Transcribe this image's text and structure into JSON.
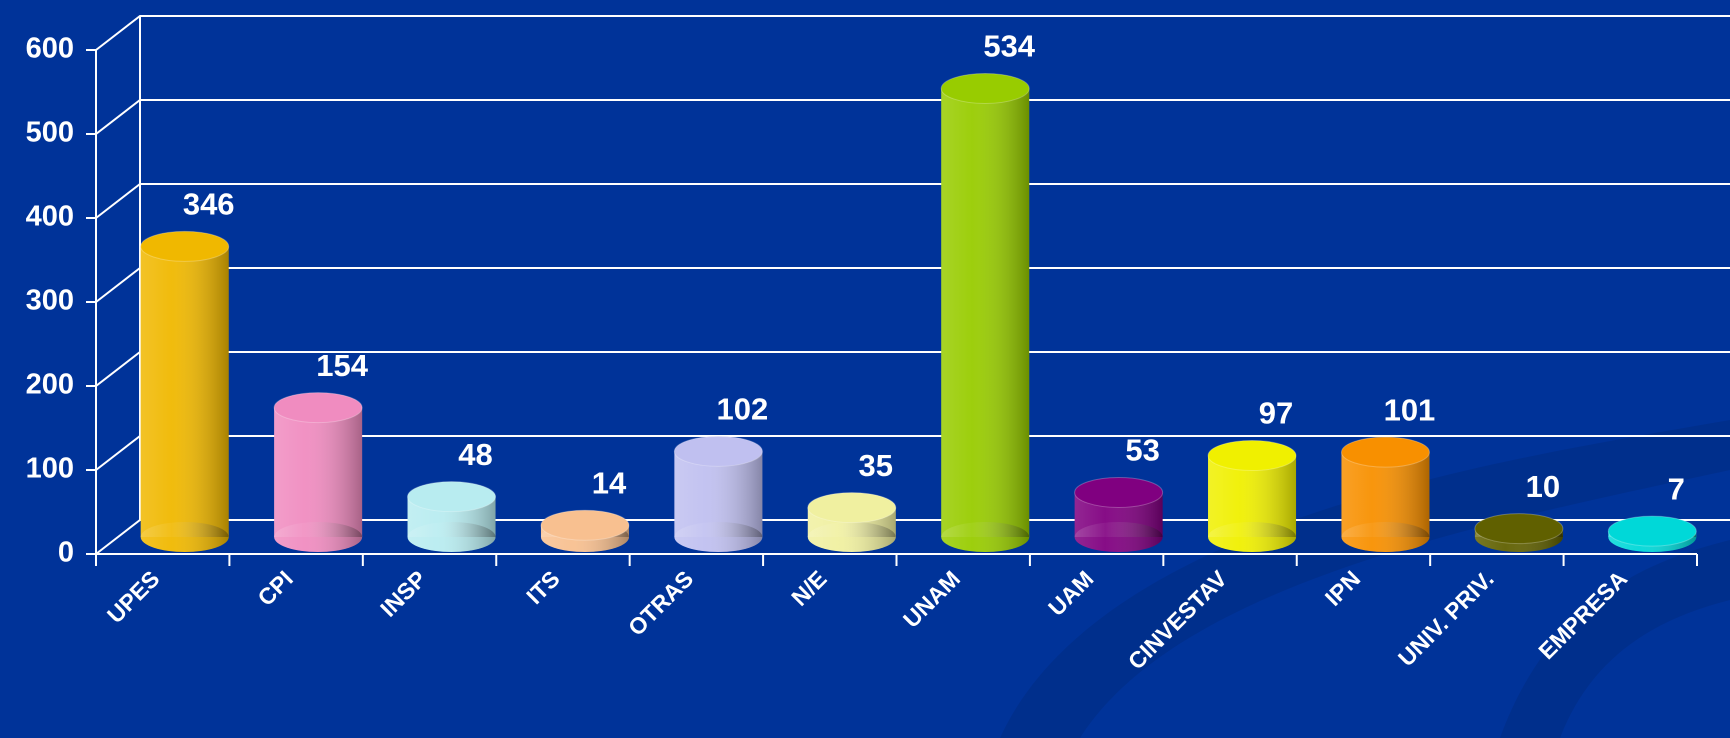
{
  "chart_data": {
    "type": "bar",
    "categories": [
      "UPES",
      "CPI",
      "INSP",
      "ITS",
      "OTRAS",
      "N/E",
      "UNAM",
      "UAM",
      "CINVESTAV",
      "IPN",
      "UNIV. PRIV.",
      "EMPRESA"
    ],
    "values": [
      346,
      154,
      48,
      14,
      102,
      35,
      534,
      53,
      97,
      101,
      10,
      7
    ],
    "colors": [
      "#f0b800",
      "#f08cc0",
      "#b8ecf0",
      "#f8c090",
      "#c0c0f0",
      "#f0f0a0",
      "#98cc00",
      "#800080",
      "#f0f000",
      "#f89000",
      "#606000",
      "#00d8d8"
    ],
    "ylim": [
      0,
      600
    ],
    "yticks": [
      0,
      100,
      200,
      300,
      400,
      500,
      600
    ],
    "grid": true
  }
}
